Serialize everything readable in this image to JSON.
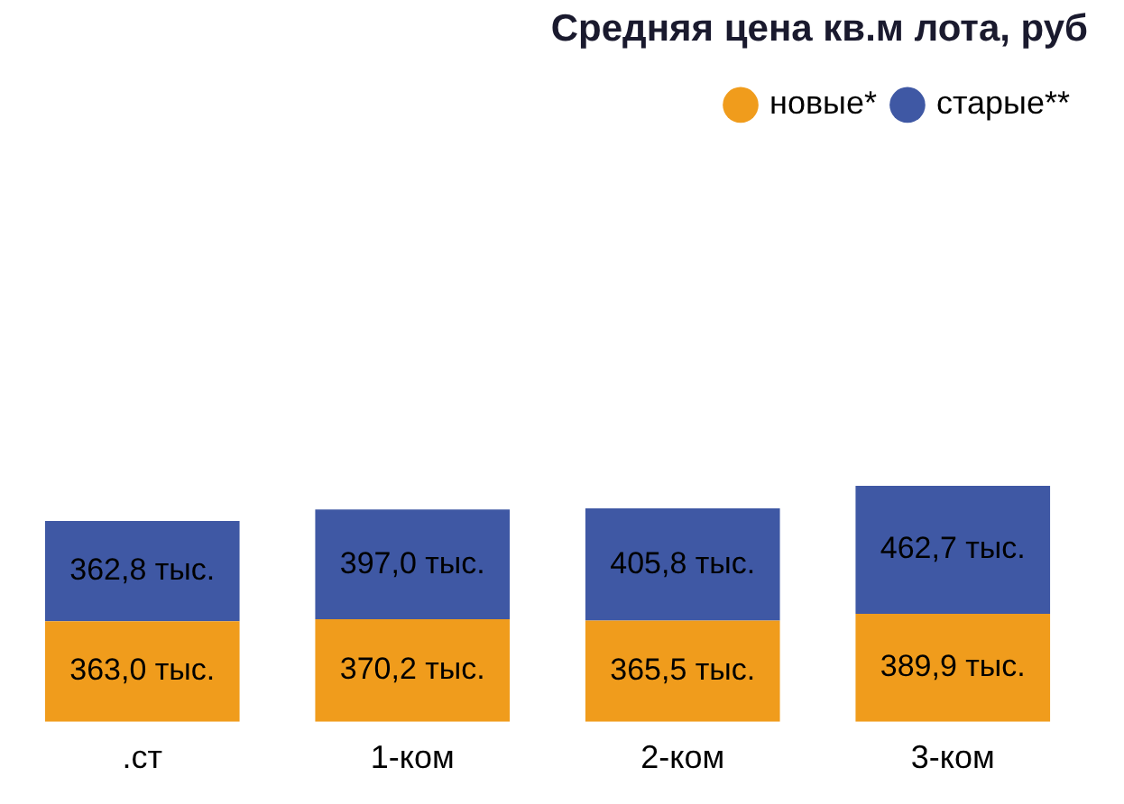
{
  "chart_data": {
    "type": "bar",
    "title": "Средняя цена кв.м лота, руб",
    "categories": [
      ".ст",
      "1-ком",
      "2-ком",
      "3-ком"
    ],
    "stacked": true,
    "legend": "top right",
    "grid": false,
    "tick_labels": "x",
    "series": [
      {
        "name": "новые*",
        "color": "#f09c1c",
        "values": [
          363.0,
          370.2,
          365.5,
          389.9
        ],
        "value_labels": [
          "363,0 тыс.",
          "370,2 тыс.",
          "365,5 тыс.",
          "389,9 тыс."
        ]
      },
      {
        "name": "старые**",
        "color": "#3f58a4",
        "values": [
          362.8,
          397.0,
          405.8,
          462.7
        ],
        "value_labels": [
          "362,8 тыс.",
          "397,0 тыс.",
          "405,8 тыс.",
          "462,7 тыс."
        ]
      }
    ]
  }
}
